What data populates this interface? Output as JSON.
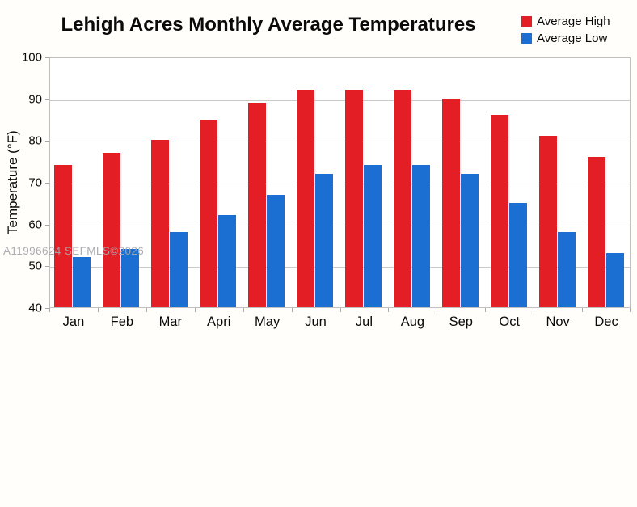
{
  "title": "Lehigh Acres Monthly Average Temperatures",
  "watermark": "A11996624 SEFMLS©2026",
  "colors": {
    "high": "#e31e25",
    "low": "#1b6fd2",
    "gridline": "#c9c9c9",
    "text": "#0a0a0a"
  },
  "legend": {
    "position": "top-right",
    "items": [
      {
        "label": "Average High",
        "color": "#e31e25"
      },
      {
        "label": "Average Low",
        "color": "#1b6fd2"
      }
    ]
  },
  "y_axis": {
    "title": "Temperature (°F)",
    "tick_labels": [
      "100",
      "90",
      "80",
      "70",
      "60",
      "50",
      "40"
    ],
    "min": 40,
    "max": 100
  },
  "chart_data": {
    "type": "bar",
    "title": "Lehigh Acres Monthly Average Temperatures",
    "categories": [
      "Jan",
      "Feb",
      "Mar",
      "Apri",
      "May",
      "Jun",
      "Jul",
      "Aug",
      "Sep",
      "Oct",
      "Nov",
      "Dec"
    ],
    "series": [
      {
        "name": "Average High",
        "color": "#e31e25",
        "values": [
          74,
          77,
          80,
          85,
          89,
          92,
          92,
          92,
          90,
          86,
          81,
          76
        ]
      },
      {
        "name": "Average Low",
        "color": "#1b6fd2",
        "values": [
          52,
          54,
          58,
          62,
          67,
          72,
          74,
          74,
          72,
          65,
          58,
          53
        ]
      }
    ],
    "xlabel": "",
    "ylabel": "Temperature (°F)",
    "ylim": [
      40,
      100
    ],
    "yticks": [
      100,
      90,
      80,
      70,
      60,
      50,
      40
    ],
    "grid": true,
    "legend_position": "top-right"
  }
}
